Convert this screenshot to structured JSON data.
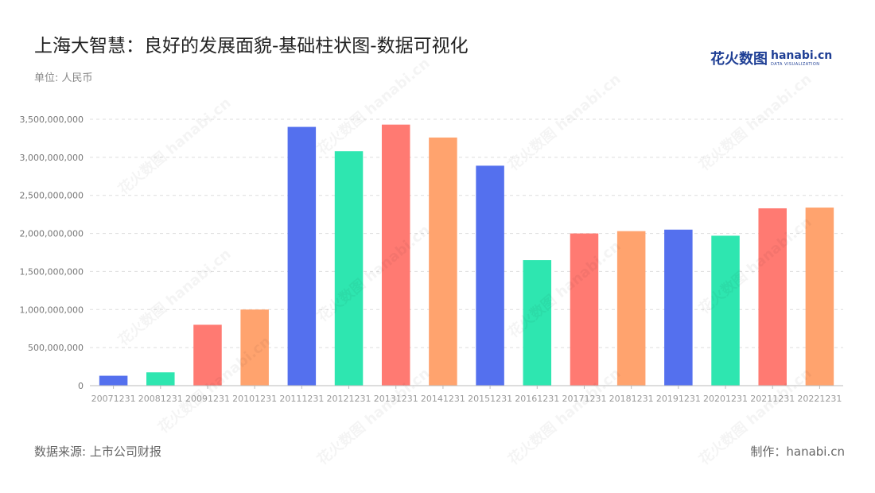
{
  "header": {
    "title": "上海大智慧：良好的发展面貌-基础柱状图-数据可视化",
    "unit": "单位: 人民币"
  },
  "logo": {
    "cn": "花火数图",
    "en": "hanabi.cn",
    "sub": "DATA VISUALIZATION"
  },
  "footer": {
    "source": "数据来源: 上市公司财报",
    "maker": "制作：hanabi.cn"
  },
  "watermark": "花火数图 hanabi.cn",
  "chart_data": {
    "type": "bar",
    "categories": [
      "20071231",
      "20081231",
      "20091231",
      "20101231",
      "20111231",
      "20121231",
      "20131231",
      "20141231",
      "20151231",
      "20161231",
      "20171231",
      "20181231",
      "20191231",
      "20201231",
      "20211231",
      "20221231"
    ],
    "values": [
      130000000,
      175000000,
      800000000,
      1000000000,
      3400000000,
      3080000000,
      3430000000,
      3260000000,
      2890000000,
      1650000000,
      2000000000,
      2030000000,
      2050000000,
      1970000000,
      2330000000,
      2340000000
    ],
    "colors": [
      "#5470ee",
      "#2ee6b0",
      "#ff7a72",
      "#ffa36e"
    ],
    "ylim": [
      0,
      3500000000
    ],
    "yticks": [
      0,
      500000000,
      1000000000,
      1500000000,
      2000000000,
      2500000000,
      3000000000,
      3500000000
    ],
    "ytick_labels": [
      "0",
      "500,000,000",
      "1,000,000,000",
      "1,500,000,000",
      "2,000,000,000",
      "2,500,000,000",
      "3,000,000,000",
      "3,500,000,000"
    ],
    "grid": true
  }
}
